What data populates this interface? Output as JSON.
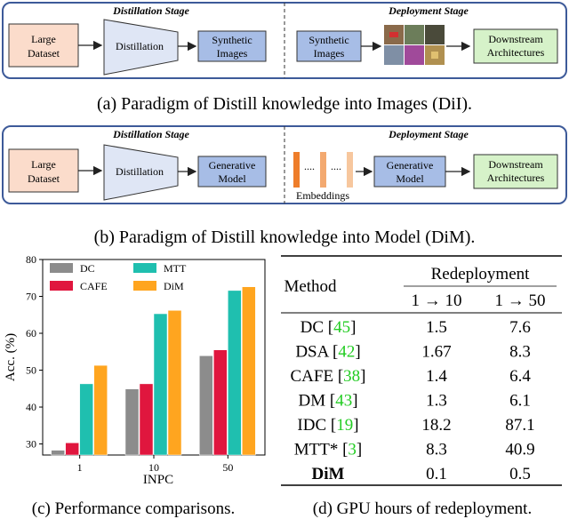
{
  "panel_a": {
    "left_stage": "Distillation Stage",
    "right_stage": "Deployment Stage",
    "large_dataset_line1": "Large",
    "large_dataset_line2": "Dataset",
    "distillation": "Distillation",
    "synthetic_line1": "Synthetic",
    "synthetic_line2": "Images",
    "synthetic2_line1": "Synthetic",
    "synthetic2_line2": "Images",
    "downstream_line1": "Downstream",
    "downstream_line2": "Architectures",
    "caption": "(a) Paradigm of Distill knowledge into Images (DiI)."
  },
  "panel_b": {
    "left_stage": "Distillation Stage",
    "right_stage": "Deployment Stage",
    "large_dataset_line1": "Large",
    "large_dataset_line2": "Dataset",
    "distillation": "Distillation",
    "generative_line1": "Generative",
    "generative_line2": "Model",
    "embeddings": "Embeddings",
    "generative2_line1": "Generative",
    "generative2_line2": "Model",
    "downstream_line1": "Downstream",
    "downstream_line2": "Architectures",
    "caption": "(b) Paradigm of Distill knowledge into Model (DiM)."
  },
  "chart_data": {
    "type": "bar",
    "xlabel": "INPC",
    "ylabel": "Acc. (%)",
    "categories": [
      "1",
      "10",
      "50"
    ],
    "ylim": [
      27,
      80
    ],
    "yticks": [
      "30",
      "40",
      "50",
      "60",
      "70",
      "80"
    ],
    "legend_position": "top-left",
    "series": [
      {
        "name": "DC",
        "color": "#8c8c8c",
        "values": [
          28.3,
          44.9,
          53.9
        ]
      },
      {
        "name": "CAFE",
        "color": "#e0163e",
        "values": [
          30.3,
          46.3,
          55.5
        ]
      },
      {
        "name": "MTT",
        "color": "#1fbfaf",
        "values": [
          46.3,
          65.3,
          71.6
        ]
      },
      {
        "name": "DiM",
        "color": "#ffa51f",
        "values": [
          51.3,
          66.2,
          72.6
        ]
      }
    ],
    "caption": "(c) Performance comparisons."
  },
  "table": {
    "header_method": "Method",
    "header_group": "Redeployment",
    "header_col1": "1 → 10",
    "header_col2": "1 → 50",
    "rows": [
      {
        "method": "DC",
        "cite": "45",
        "v1": "1.5",
        "v2": "7.6"
      },
      {
        "method": "DSA",
        "cite": "42",
        "v1": "1.67",
        "v2": "8.3"
      },
      {
        "method": "CAFE",
        "cite": "38",
        "v1": "1.4",
        "v2": "6.4"
      },
      {
        "method": "DM",
        "cite": "43",
        "v1": "1.3",
        "v2": "6.1"
      },
      {
        "method": "IDC",
        "cite": "19",
        "v1": "18.2",
        "v2": "87.1"
      },
      {
        "method": "MTT*",
        "cite": "3",
        "v1": "8.3",
        "v2": "40.9"
      },
      {
        "method": "DiM",
        "cite": "",
        "v1": "0.1",
        "v2": "0.5"
      }
    ],
    "caption": "(d) GPU hours of redeployment."
  }
}
